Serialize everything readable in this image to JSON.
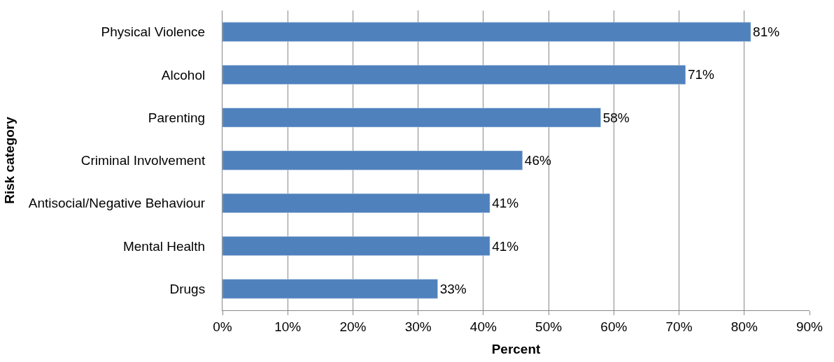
{
  "chart_data": {
    "type": "bar",
    "orientation": "horizontal",
    "xlabel": "Percent",
    "ylabel": "Risk category",
    "categories": [
      "Physical Violence",
      "Alcohol",
      "Parenting",
      "Criminal Involvement",
      "Antisocial/Negative Behaviour",
      "Mental Health",
      "Drugs"
    ],
    "values": [
      81,
      71,
      58,
      46,
      41,
      41,
      33
    ],
    "value_labels": [
      "81%",
      "71%",
      "58%",
      "46%",
      "41%",
      "41%",
      "33%"
    ],
    "color": "#4f81bd",
    "xlim": [
      0,
      90
    ],
    "xticks": [
      {
        "value": 0,
        "label": "0%"
      },
      {
        "value": 10,
        "label": "10%"
      },
      {
        "value": 20,
        "label": "20%"
      },
      {
        "value": 30,
        "label": "30%"
      },
      {
        "value": 40,
        "label": "40%"
      },
      {
        "value": 50,
        "label": "50%"
      },
      {
        "value": 60,
        "label": "60%"
      },
      {
        "value": 70,
        "label": "70%"
      },
      {
        "value": 80,
        "label": "80%"
      },
      {
        "value": 90,
        "label": "90%"
      }
    ],
    "grid": "x"
  }
}
